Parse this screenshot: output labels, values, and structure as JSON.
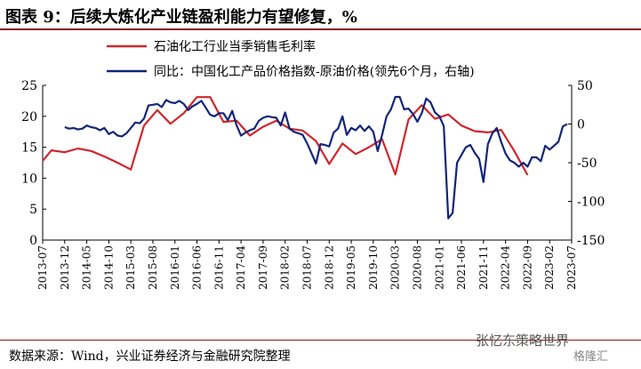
{
  "header": {
    "title": "图表 9：后续大炼化产业链盈利能力有望修复，%"
  },
  "footer": {
    "source": "数据来源：Wind，兴业证券经济与金融研究院整理",
    "watermark": "张忆东策略世界",
    "watermark_sub": "格隆汇"
  },
  "colors": {
    "red": "#d0262d",
    "blue": "#13257a",
    "rule": "#8b1a1a"
  },
  "chart_data": {
    "type": "line",
    "legend_position": "top",
    "grid": false,
    "x_tick_labels": [
      "2013-07",
      "2013-12",
      "2014-05",
      "2014-10",
      "2015-03",
      "2015-08",
      "2016-01",
      "2016-06",
      "2016-11",
      "2017-04",
      "2017-09",
      "2018-02",
      "2018-07",
      "2018-12",
      "2019-05",
      "2019-10",
      "2020-03",
      "2020-08",
      "2021-01",
      "2021-06",
      "2021-11",
      "2022-04",
      "2022-09",
      "2023-02",
      "2023-07"
    ],
    "y_left": {
      "ticks": [
        0,
        5,
        10,
        15,
        20,
        25
      ],
      "range": [
        0,
        25
      ]
    },
    "y_right": {
      "ticks": [
        -150,
        -100,
        -50,
        0,
        50
      ],
      "range": [
        -150,
        50
      ]
    },
    "series": [
      {
        "name": "石油化工行业当季销售毛利率",
        "axis": "left",
        "color": "#d0262d",
        "points": [
          [
            "2013-07",
            12.8
          ],
          [
            "2013-09",
            14.5
          ],
          [
            "2013-12",
            14.2
          ],
          [
            "2014-03",
            14.8
          ],
          [
            "2014-06",
            14.4
          ],
          [
            "2014-09",
            13.5
          ],
          [
            "2014-12",
            12.5
          ],
          [
            "2015-03",
            11.4
          ],
          [
            "2015-06",
            18.5
          ],
          [
            "2015-09",
            21.0
          ],
          [
            "2015-12",
            18.8
          ],
          [
            "2016-03",
            20.5
          ],
          [
            "2016-06",
            23.1
          ],
          [
            "2016-09",
            23.1
          ],
          [
            "2016-12",
            19.1
          ],
          [
            "2017-03",
            19.3
          ],
          [
            "2017-06",
            16.9
          ],
          [
            "2017-09",
            18.3
          ],
          [
            "2017-12",
            19.3
          ],
          [
            "2018-03",
            18.0
          ],
          [
            "2018-06",
            17.7
          ],
          [
            "2018-09",
            16.0
          ],
          [
            "2018-12",
            12.3
          ],
          [
            "2019-03",
            15.6
          ],
          [
            "2019-06",
            13.9
          ],
          [
            "2019-09",
            15.0
          ],
          [
            "2019-12",
            16.3
          ],
          [
            "2020-03",
            10.6
          ],
          [
            "2020-06",
            19.5
          ],
          [
            "2020-09",
            21.8
          ],
          [
            "2020-12",
            19.6
          ],
          [
            "2021-03",
            20.3
          ],
          [
            "2021-06",
            18.5
          ],
          [
            "2021-09",
            17.6
          ],
          [
            "2021-12",
            17.4
          ],
          [
            "2022-03",
            17.8
          ],
          [
            "2022-06",
            14.4
          ],
          [
            "2022-09",
            10.5
          ]
        ]
      },
      {
        "name": "同比：中国化工产品价格指数-原油价格(领先6个月，右轴)",
        "axis": "right",
        "color": "#13257a",
        "points": [
          [
            "2013-12",
            -4
          ],
          [
            "2014-01",
            -6
          ],
          [
            "2014-02",
            -5
          ],
          [
            "2014-03",
            -7
          ],
          [
            "2014-04",
            -6
          ],
          [
            "2014-05",
            -2
          ],
          [
            "2014-06",
            -4
          ],
          [
            "2014-07",
            -5
          ],
          [
            "2014-08",
            -8
          ],
          [
            "2014-09",
            -5
          ],
          [
            "2014-10",
            -13
          ],
          [
            "2014-11",
            -10
          ],
          [
            "2014-12",
            -15
          ],
          [
            "2015-01",
            -16
          ],
          [
            "2015-02",
            -12
          ],
          [
            "2015-03",
            -5
          ],
          [
            "2015-04",
            2
          ],
          [
            "2015-05",
            1
          ],
          [
            "2015-06",
            7
          ],
          [
            "2015-07",
            24
          ],
          [
            "2015-08",
            25
          ],
          [
            "2015-09",
            26
          ],
          [
            "2015-10",
            22
          ],
          [
            "2015-11",
            31
          ],
          [
            "2015-12",
            28
          ],
          [
            "2016-01",
            27
          ],
          [
            "2016-02",
            30
          ],
          [
            "2016-03",
            26
          ],
          [
            "2016-04",
            18
          ],
          [
            "2016-05",
            23
          ],
          [
            "2016-06",
            26
          ],
          [
            "2016-07",
            30
          ],
          [
            "2016-08",
            21
          ],
          [
            "2016-09",
            12
          ],
          [
            "2016-10",
            10
          ],
          [
            "2016-11",
            14
          ],
          [
            "2016-12",
            14
          ],
          [
            "2017-01",
            5
          ],
          [
            "2017-02",
            17
          ],
          [
            "2017-03",
            -2
          ],
          [
            "2017-04",
            -15
          ],
          [
            "2017-05",
            -11
          ],
          [
            "2017-06",
            -8
          ],
          [
            "2017-07",
            -6
          ],
          [
            "2017-08",
            4
          ],
          [
            "2017-09",
            8
          ],
          [
            "2017-10",
            10
          ],
          [
            "2017-11",
            9
          ],
          [
            "2017-12",
            8
          ],
          [
            "2018-01",
            -2
          ],
          [
            "2018-02",
            15
          ],
          [
            "2018-03",
            -6
          ],
          [
            "2018-04",
            -10
          ],
          [
            "2018-05",
            -12
          ],
          [
            "2018-06",
            -14
          ],
          [
            "2018-07",
            -25
          ],
          [
            "2018-08",
            -38
          ],
          [
            "2018-09",
            -51
          ],
          [
            "2018-10",
            -26
          ],
          [
            "2018-11",
            -27
          ],
          [
            "2018-12",
            -29
          ],
          [
            "2018-13",
            -11
          ],
          [
            "2019-02",
            -6
          ],
          [
            "2019-03",
            10
          ],
          [
            "2019-04",
            -14
          ],
          [
            "2019-05",
            -5
          ],
          [
            "2019-06",
            -8
          ],
          [
            "2019-07",
            -2
          ],
          [
            "2019-08",
            -9
          ],
          [
            "2019-09",
            -3
          ],
          [
            "2019-10",
            -10
          ],
          [
            "2019-11",
            -35
          ],
          [
            "2019-12",
            -14
          ],
          [
            "2020-01",
            10
          ],
          [
            "2020-02",
            19
          ],
          [
            "2020-03",
            35
          ],
          [
            "2020-04",
            35
          ],
          [
            "2020-05",
            19
          ],
          [
            "2020-06",
            20
          ],
          [
            "2020-07",
            13
          ],
          [
            "2020-08",
            3
          ],
          [
            "2020-09",
            14
          ],
          [
            "2020-10",
            33
          ],
          [
            "2020-11",
            28
          ],
          [
            "2020-12",
            15
          ],
          [
            "2021-01",
            10
          ],
          [
            "2021-02",
            -3
          ],
          [
            "2021-03",
            -122
          ],
          [
            "2021-04",
            -115
          ],
          [
            "2021-05",
            -50
          ],
          [
            "2021-06",
            -40
          ],
          [
            "2021-07",
            -30
          ],
          [
            "2021-08",
            -27
          ],
          [
            "2021-09",
            -37
          ],
          [
            "2021-10",
            -45
          ],
          [
            "2021-11",
            -75
          ],
          [
            "2021-12",
            -26
          ],
          [
            "2022-01",
            -12
          ],
          [
            "2022-02",
            -5
          ],
          [
            "2022-03",
            -23
          ],
          [
            "2022-04",
            -38
          ],
          [
            "2022-05",
            -47
          ],
          [
            "2022-06",
            -50
          ],
          [
            "2022-07",
            -55
          ],
          [
            "2022-08",
            -50
          ],
          [
            "2022-09",
            -55
          ],
          [
            "2022-10",
            -43
          ],
          [
            "2022-11",
            -43
          ],
          [
            "2022-12",
            -48
          ],
          [
            "2023-01",
            -28
          ],
          [
            "2023-02",
            -33
          ],
          [
            "2023-03",
            -28
          ],
          [
            "2023-04",
            -23
          ],
          [
            "2023-05",
            -3
          ],
          [
            "2023-06",
            0
          ]
        ]
      }
    ]
  }
}
